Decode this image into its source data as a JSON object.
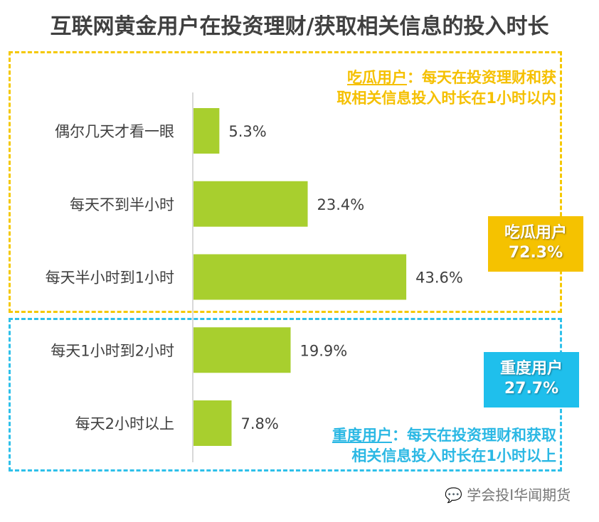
{
  "title": "互联网黄金用户在投资理财/获取相关信息的投入时长",
  "chart_data": {
    "type": "bar",
    "orientation": "horizontal",
    "categories": [
      "偶尔几天才看一眼",
      "每天不到半小时",
      "每天半小时到1小时",
      "每天1小时到2小时",
      "每天2小时以上"
    ],
    "values": [
      5.3,
      23.4,
      43.6,
      19.9,
      7.8
    ],
    "value_labels": [
      "5.3%",
      "23.4%",
      "43.6%",
      "19.9%",
      "7.8%"
    ],
    "bar_color": "#a8cf2e",
    "grid": false
  },
  "groups": {
    "light": {
      "tag_name": "吃瓜用户",
      "tag_value": "72.3%",
      "note_term": "吃瓜用户",
      "note_rest_1": "：每天在投资理财和获",
      "note_line2": "取相关信息投入时长在1小时以内",
      "color": "#f5c200"
    },
    "heavy": {
      "tag_name": "重度用户",
      "tag_value": "27.7%",
      "note_term": "重度用户",
      "note_rest_1": "：每天在投资理财和获取",
      "note_line2": "相关信息投入时长在1小时以上",
      "color": "#1fbfec"
    }
  },
  "watermark": "学会投I华闻期货"
}
